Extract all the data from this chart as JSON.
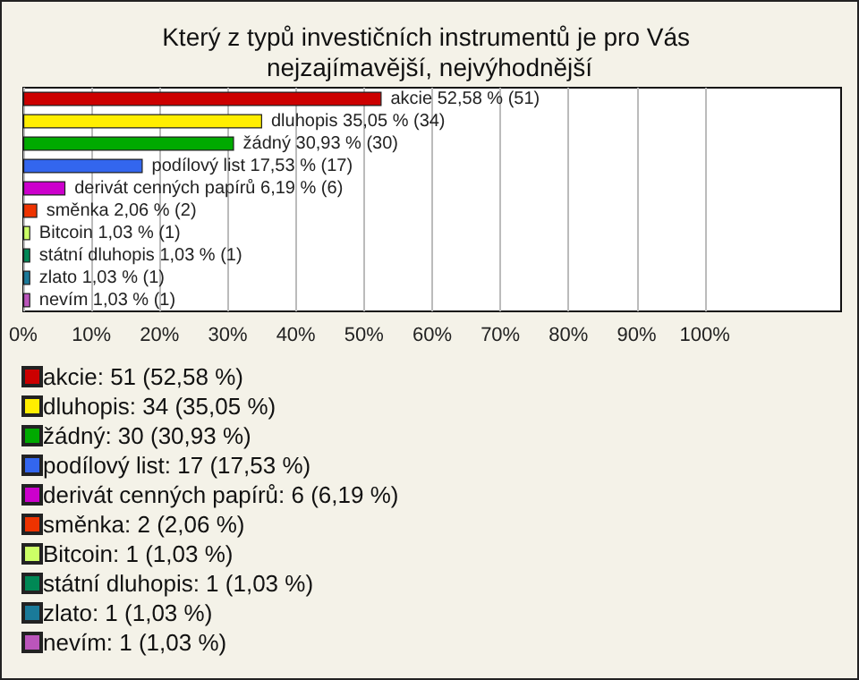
{
  "chart_data": {
    "type": "bar",
    "orientation": "horizontal",
    "stacked": true,
    "title": "Který z typů investičních instrumentů je pro Vás nejzajímavější, nejvýhodnější",
    "categories": [
      null,
      null,
      null,
      null,
      null,
      null,
      null,
      null,
      null,
      null
    ],
    "xlim": [
      0,
      120
    ],
    "xticks": [
      {
        "value": 0,
        "label": "0%"
      },
      {
        "value": 10,
        "label": "10%"
      },
      {
        "value": 20,
        "label": "20%"
      },
      {
        "value": 30,
        "label": "30%"
      },
      {
        "value": 40,
        "label": "40%"
      },
      {
        "value": 50,
        "label": "50%"
      },
      {
        "value": 60,
        "label": "60%"
      },
      {
        "value": 70,
        "label": "70%"
      },
      {
        "value": 80,
        "label": "80%"
      },
      {
        "value": 90,
        "label": "90%"
      },
      {
        "value": 100,
        "label": "100%"
      }
    ],
    "grid": "x",
    "legend": "bottom",
    "series": [
      {
        "name": "akcie: 51 (52,58 %)",
        "color": "#cc0000",
        "values": [
          52.58,
          null,
          null,
          null,
          null,
          null,
          null,
          null,
          null,
          null
        ],
        "value_labels": [
          "akcie 52,58 % (51)",
          null,
          null,
          null,
          null,
          null,
          null,
          null,
          null,
          null
        ]
      },
      {
        "name": "dluhopis: 34 (35,05 %)",
        "color": "#ffee00",
        "values": [
          null,
          35.05,
          null,
          null,
          null,
          null,
          null,
          null,
          null,
          null
        ],
        "value_labels": [
          null,
          "dluhopis 35,05 % (34)",
          null,
          null,
          null,
          null,
          null,
          null,
          null,
          null
        ]
      },
      {
        "name": "žádný: 30 (30,93 %)",
        "color": "#00aa00",
        "values": [
          null,
          null,
          30.93,
          null,
          null,
          null,
          null,
          null,
          null,
          null
        ],
        "value_labels": [
          null,
          null,
          "žádný 30,93 % (30)",
          null,
          null,
          null,
          null,
          null,
          null,
          null
        ]
      },
      {
        "name": "podílový list: 17 (17,53 %)",
        "color": "#3366ee",
        "values": [
          null,
          null,
          null,
          17.53,
          null,
          null,
          null,
          null,
          null,
          null
        ],
        "value_labels": [
          null,
          null,
          null,
          "podílový list 17,53 % (17)",
          null,
          null,
          null,
          null,
          null,
          null
        ]
      },
      {
        "name": "derivát cenných papírů: 6 (6,19 %)",
        "color": "#cc00cc",
        "values": [
          null,
          null,
          null,
          null,
          6.19,
          null,
          null,
          null,
          null,
          null
        ],
        "value_labels": [
          null,
          null,
          null,
          null,
          "derivát cenných papírů 6,19 % (6)",
          null,
          null,
          null,
          null,
          null
        ]
      },
      {
        "name": "směnka: 2 (2,06 %)",
        "color": "#ee3300",
        "values": [
          null,
          null,
          null,
          null,
          null,
          2.06,
          null,
          null,
          null,
          null
        ],
        "value_labels": [
          null,
          null,
          null,
          null,
          null,
          "směnka 2,06 % (2)",
          null,
          null,
          null,
          null
        ]
      },
      {
        "name": "Bitcoin: 1 (1,03 %)",
        "color": "#ccff66",
        "values": [
          null,
          null,
          null,
          null,
          null,
          null,
          1.03,
          null,
          null,
          null
        ],
        "value_labels": [
          null,
          null,
          null,
          null,
          null,
          null,
          "Bitcoin 1,03 % (1)",
          null,
          null,
          null
        ]
      },
      {
        "name": "státní dluhopis: 1 (1,03 %)",
        "color": "#008855",
        "values": [
          null,
          null,
          null,
          null,
          null,
          null,
          null,
          1.03,
          null,
          null
        ],
        "value_labels": [
          null,
          null,
          null,
          null,
          null,
          null,
          null,
          "státní dluhopis 1,03 % (1)",
          null,
          null
        ]
      },
      {
        "name": "zlato: 1 (1,03 %)",
        "color": "#1a7a99",
        "values": [
          null,
          null,
          null,
          null,
          null,
          null,
          null,
          null,
          1.03,
          null
        ],
        "value_labels": [
          null,
          null,
          null,
          null,
          null,
          null,
          null,
          null,
          "zlato 1,03 % (1)",
          null
        ]
      },
      {
        "name": "nevím: 1 (1,03 %)",
        "color": "#bb55bb",
        "values": [
          null,
          null,
          null,
          null,
          null,
          null,
          null,
          null,
          null,
          1.03
        ],
        "value_labels": [
          null,
          null,
          null,
          null,
          null,
          null,
          null,
          null,
          null,
          "nevím 1,03 % (1)"
        ]
      }
    ]
  }
}
